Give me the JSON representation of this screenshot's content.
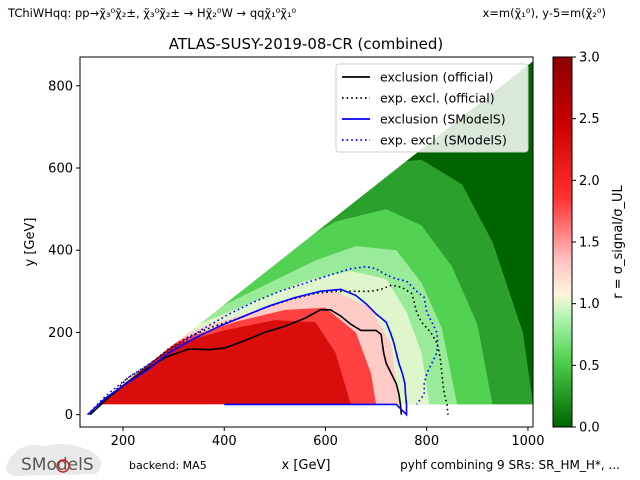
{
  "header": {
    "topology": "TChiWHqq: pp→χ̃₃⁰χ̃₂±, χ̃₃⁰χ̃₂± → Hχ̃₂⁰W → qqχ̃₁⁰χ̃₁⁰",
    "mass_convention": "x=m(χ̃₁⁰), y-5=m(χ̃₂⁰)"
  },
  "footer": {
    "logo_text": "SModelS",
    "backend": "backend: MA5",
    "combination": "pyhf combining 9 SRs: SR_HM_H*, ..."
  },
  "colors": {
    "official_line": "#000000",
    "smodels_line": "#0000ff",
    "colormap": [
      "#006400",
      "#4fd04f",
      "#b6f5b6",
      "#fff5dc",
      "#ffc2c2",
      "#ff3030",
      "#cc0000",
      "#8b0000"
    ]
  },
  "chart_data": {
    "type": "heatmap",
    "title": "ATLAS-SUSY-2019-08-CR (combined)",
    "xlabel": "x [GeV]",
    "ylabel": "y [GeV]",
    "xlim": [
      115,
      1010
    ],
    "ylim": [
      -30,
      870
    ],
    "xticks": [
      200,
      400,
      600,
      800,
      1000
    ],
    "yticks": [
      0,
      200,
      400,
      600,
      800
    ],
    "grid": false,
    "legend_position": "upper-right",
    "colorbar": {
      "label": "r = σ_signal/σ_UL",
      "range": [
        0.0,
        3.0
      ],
      "ticks": [
        "0.0",
        "0.5",
        "1.0",
        "1.5",
        "2.0",
        "2.5",
        "3.0"
      ]
    },
    "heatmap_region": {
      "x_range": [
        150,
        1010
      ],
      "y_min": 25,
      "upper_edge": [
        [
          150,
          25
        ],
        [
          1010,
          860
        ]
      ]
    },
    "r_contour_levels": [
      {
        "r": 2.3,
        "boundary": [
          [
            155,
            25
          ],
          [
            175,
            70
          ],
          [
            220,
            115
          ],
          [
            300,
            170
          ],
          [
            400,
            205
          ],
          [
            500,
            230
          ],
          [
            580,
            225
          ],
          [
            620,
            150
          ],
          [
            650,
            25
          ]
        ]
      },
      {
        "r": 1.8,
        "boundary": [
          [
            140,
            25
          ],
          [
            180,
            85
          ],
          [
            240,
            135
          ],
          [
            320,
            185
          ],
          [
            420,
            225
          ],
          [
            520,
            255
          ],
          [
            600,
            260
          ],
          [
            660,
            200
          ],
          [
            690,
            100
          ],
          [
            700,
            25
          ]
        ]
      },
      {
        "r": 1.3,
        "boundary": [
          [
            130,
            25
          ],
          [
            180,
            95
          ],
          [
            260,
            160
          ],
          [
            340,
            205
          ],
          [
            440,
            245
          ],
          [
            540,
            285
          ],
          [
            620,
            300
          ],
          [
            690,
            260
          ],
          [
            730,
            170
          ],
          [
            745,
            25
          ]
        ]
      },
      {
        "r": 1.0,
        "boundary": [
          [
            120,
            25
          ],
          [
            180,
            105
          ],
          [
            270,
            175
          ],
          [
            360,
            225
          ],
          [
            460,
            275
          ],
          [
            560,
            325
          ],
          [
            650,
            350
          ],
          [
            720,
            330
          ],
          [
            760,
            250
          ],
          [
            790,
            150
          ],
          [
            805,
            25
          ]
        ]
      },
      {
        "r": 0.8,
        "boundary": [
          [
            110,
            25
          ],
          [
            180,
            115
          ],
          [
            280,
            195
          ],
          [
            380,
            255
          ],
          [
            480,
            315
          ],
          [
            580,
            375
          ],
          [
            660,
            410
          ],
          [
            740,
            400
          ],
          [
            790,
            320
          ],
          [
            830,
            210
          ],
          [
            860,
            25
          ]
        ]
      },
      {
        "r": 0.55,
        "boundary": [
          [
            100,
            25
          ],
          [
            200,
            150
          ],
          [
            320,
            250
          ],
          [
            420,
            320
          ],
          [
            520,
            400
          ],
          [
            620,
            470
          ],
          [
            720,
            500
          ],
          [
            790,
            460
          ],
          [
            850,
            360
          ],
          [
            900,
            220
          ],
          [
            930,
            25
          ]
        ]
      },
      {
        "r": 0.3,
        "boundary": [
          [
            90,
            25
          ],
          [
            260,
            230
          ],
          [
            380,
            330
          ],
          [
            500,
            440
          ],
          [
            600,
            540
          ],
          [
            700,
            610
          ],
          [
            790,
            620
          ],
          [
            870,
            560
          ],
          [
            930,
            420
          ],
          [
            990,
            200
          ],
          [
            1010,
            25
          ]
        ]
      }
    ],
    "series": [
      {
        "name": "exclusion (official)",
        "style": "solid",
        "color": "#000000",
        "points": [
          [
            135,
            0
          ],
          [
            170,
            40
          ],
          [
            205,
            75
          ],
          [
            245,
            110
          ],
          [
            285,
            140
          ],
          [
            330,
            160
          ],
          [
            370,
            158
          ],
          [
            400,
            162
          ],
          [
            440,
            180
          ],
          [
            480,
            200
          ],
          [
            520,
            215
          ],
          [
            560,
            235
          ],
          [
            590,
            255
          ],
          [
            610,
            255
          ],
          [
            630,
            240
          ],
          [
            650,
            220
          ],
          [
            670,
            205
          ],
          [
            700,
            205
          ],
          [
            710,
            195
          ],
          [
            712,
            175
          ],
          [
            715,
            150
          ],
          [
            720,
            125
          ],
          [
            730,
            100
          ],
          [
            740,
            75
          ],
          [
            745,
            50
          ],
          [
            748,
            25
          ],
          [
            750,
            0
          ]
        ]
      },
      {
        "name": "exp. excl. (official)",
        "style": "dotted",
        "color": "#000000",
        "points": [
          [
            135,
            0
          ],
          [
            170,
            40
          ],
          [
            210,
            90
          ],
          [
            250,
            120
          ],
          [
            290,
            160
          ],
          [
            330,
            190
          ],
          [
            380,
            215
          ],
          [
            430,
            235
          ],
          [
            480,
            260
          ],
          [
            530,
            280
          ],
          [
            580,
            295
          ],
          [
            620,
            300
          ],
          [
            660,
            300
          ],
          [
            690,
            300
          ],
          [
            710,
            305
          ],
          [
            730,
            315
          ],
          [
            750,
            310
          ],
          [
            770,
            295
          ],
          [
            775,
            275
          ],
          [
            780,
            250
          ],
          [
            790,
            225
          ],
          [
            808,
            200
          ],
          [
            820,
            175
          ],
          [
            825,
            150
          ],
          [
            828,
            125
          ],
          [
            830,
            100
          ],
          [
            832,
            75
          ],
          [
            835,
            50
          ],
          [
            840,
            25
          ],
          [
            842,
            0
          ]
        ]
      },
      {
        "name": "exclusion (SModelS)",
        "style": "solid",
        "color": "#0000ff",
        "points": [
          [
            130,
            0
          ],
          [
            165,
            40
          ],
          [
            200,
            70
          ],
          [
            250,
            110
          ],
          [
            290,
            150
          ],
          [
            340,
            185
          ],
          [
            390,
            215
          ],
          [
            440,
            240
          ],
          [
            490,
            265
          ],
          [
            540,
            285
          ],
          [
            590,
            300
          ],
          [
            630,
            305
          ],
          [
            660,
            290
          ],
          [
            680,
            270
          ],
          [
            700,
            245
          ],
          [
            720,
            225
          ],
          [
            728,
            200
          ],
          [
            735,
            175
          ],
          [
            740,
            150
          ],
          [
            745,
            125
          ],
          [
            752,
            100
          ],
          [
            757,
            75
          ],
          [
            758,
            50
          ],
          [
            760,
            25
          ],
          [
            760,
            0
          ],
          [
            740,
            25
          ],
          [
            400,
            25
          ]
        ]
      },
      {
        "name": "exp. excl. (SModelS)",
        "style": "dotted",
        "color": "#0000ff",
        "points": [
          [
            130,
            0
          ],
          [
            165,
            45
          ],
          [
            210,
            90
          ],
          [
            260,
            130
          ],
          [
            310,
            170
          ],
          [
            360,
            210
          ],
          [
            410,
            245
          ],
          [
            460,
            275
          ],
          [
            510,
            300
          ],
          [
            560,
            320
          ],
          [
            610,
            340
          ],
          [
            650,
            355
          ],
          [
            680,
            360
          ],
          [
            700,
            355
          ],
          [
            720,
            340
          ],
          [
            740,
            330
          ],
          [
            760,
            325
          ],
          [
            780,
            300
          ],
          [
            795,
            285
          ],
          [
            800,
            250
          ],
          [
            810,
            225
          ],
          [
            820,
            200
          ],
          [
            822,
            175
          ],
          [
            820,
            150
          ],
          [
            810,
            125
          ],
          [
            800,
            100
          ],
          [
            795,
            75
          ],
          [
            795,
            50
          ],
          [
            780,
            25
          ]
        ]
      }
    ]
  }
}
